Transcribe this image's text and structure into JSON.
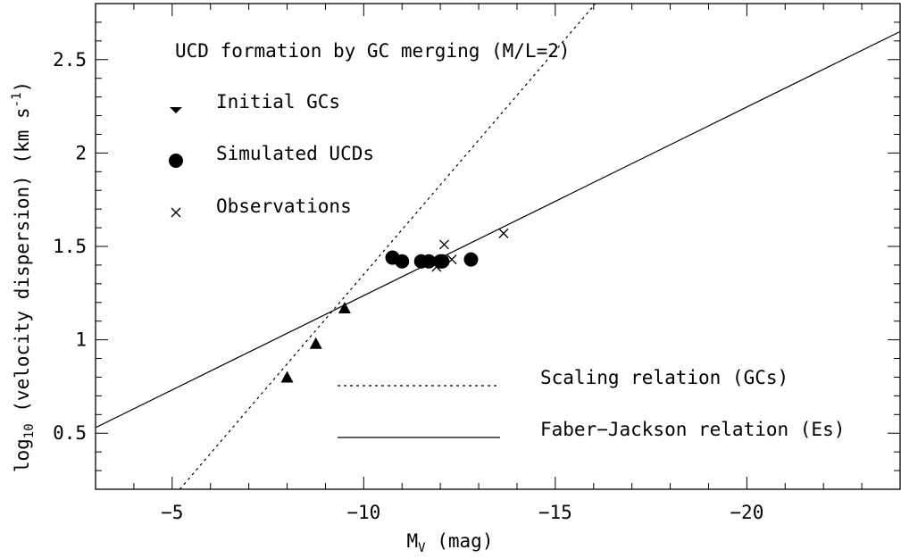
{
  "chart_data": {
    "type": "scatter",
    "title": "UCD formation by GC merging (M/L=2)",
    "xlabel": {
      "main": "M",
      "sub": "V",
      "rest": " (mag)"
    },
    "ylabel": {
      "main": "log",
      "sub": "10",
      "rest": " (velocity dispersion) (km s",
      "sup": "-1",
      "end": ")"
    },
    "xlim": [
      -3,
      -24
    ],
    "ylim": [
      0.2,
      2.8
    ],
    "x_ticks": [
      {
        "value": -5,
        "label": "−5"
      },
      {
        "value": -10,
        "label": "−10"
      },
      {
        "value": -15,
        "label": "−15"
      },
      {
        "value": -20,
        "label": "−20"
      }
    ],
    "y_ticks": [
      {
        "value": 0.5,
        "label": "0.5"
      },
      {
        "value": 1,
        "label": "1"
      },
      {
        "value": 1.5,
        "label": "1.5"
      },
      {
        "value": 2,
        "label": "2"
      },
      {
        "value": 2.5,
        "label": "2.5"
      }
    ],
    "series": [
      {
        "name": "Initial GCs",
        "marker": "triangle",
        "points": [
          [
            -8.0,
            0.8
          ],
          [
            -8.75,
            0.98
          ],
          [
            -9.5,
            1.17
          ]
        ]
      },
      {
        "name": "Simulated UCDs",
        "marker": "circle",
        "points": [
          [
            -10.75,
            1.44
          ],
          [
            -11.0,
            1.42
          ],
          [
            -11.5,
            1.42
          ],
          [
            -11.7,
            1.42
          ],
          [
            -12.0,
            1.42
          ],
          [
            -12.05,
            1.42
          ],
          [
            -12.8,
            1.43
          ]
        ]
      },
      {
        "name": "Observations",
        "marker": "cross",
        "points": [
          [
            -11.9,
            1.39
          ],
          [
            -12.1,
            1.51
          ],
          [
            -12.3,
            1.43
          ],
          [
            -13.65,
            1.57
          ]
        ]
      }
    ],
    "lines": [
      {
        "name": "Scaling relation (GCs)",
        "style": "dotted",
        "points": [
          [
            -5.2,
            0.2
          ],
          [
            -16.05,
            2.8
          ]
        ]
      },
      {
        "name": "Faber−Jackson relation (Es)",
        "style": "solid",
        "points": [
          [
            -3,
            0.53
          ],
          [
            -24,
            2.65
          ]
        ]
      }
    ]
  }
}
